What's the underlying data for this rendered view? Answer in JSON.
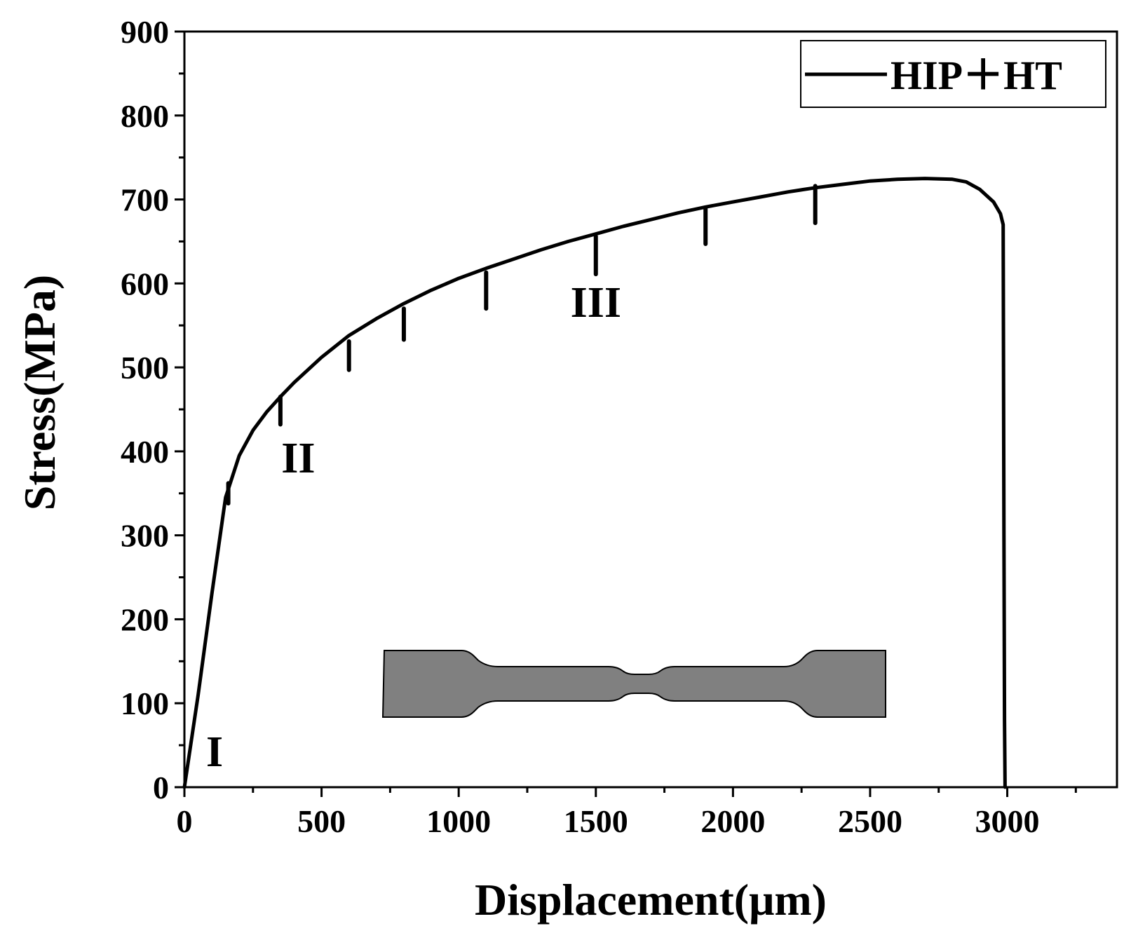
{
  "chart_data": {
    "type": "line",
    "xlabel": "Displacement(μm)",
    "ylabel": "Stress(MPa)",
    "xlim": [
      0,
      3400
    ],
    "ylim": [
      0,
      900
    ],
    "xticks": [
      0,
      500,
      1000,
      1500,
      2000,
      2500,
      3000
    ],
    "yticks": [
      0,
      100,
      200,
      300,
      400,
      500,
      600,
      700,
      800,
      900
    ],
    "xtick_labels": [
      "0",
      "500",
      "1000",
      "1500",
      "2000",
      "2500",
      "3000"
    ],
    "ytick_labels": [
      "0",
      "100",
      "200",
      "300",
      "400",
      "500",
      "600",
      "700",
      "800",
      "900"
    ],
    "grid": false,
    "legend_position": "top-right",
    "series": [
      {
        "name": "HIP＋HT",
        "color": "#000000",
        "x": [
          0,
          50,
          100,
          150,
          200,
          250,
          300,
          350,
          400,
          500,
          600,
          700,
          800,
          900,
          1000,
          1100,
          1200,
          1300,
          1400,
          1500,
          1600,
          1700,
          1800,
          1900,
          2000,
          2100,
          2200,
          2300,
          2400,
          2500,
          2600,
          2700,
          2800,
          2850,
          2900,
          2950,
          2975,
          2985,
          2988,
          2990,
          2992
        ],
        "y": [
          0,
          110,
          230,
          345,
          395,
          425,
          447,
          465,
          482,
          512,
          538,
          558,
          576,
          592,
          606,
          618,
          629,
          640,
          650,
          659,
          668,
          676,
          684,
          691,
          697,
          703,
          709,
          714,
          718,
          722,
          724,
          725,
          724,
          721,
          712,
          697,
          683,
          670,
          300,
          80,
          0
        ]
      }
    ],
    "unloading_drops": [
      {
        "x": 160,
        "y_top": 362,
        "y_bottom": 338
      },
      {
        "x": 350,
        "y_top": 465,
        "y_bottom": 432
      },
      {
        "x": 600,
        "y_top": 531,
        "y_bottom": 497
      },
      {
        "x": 800,
        "y_top": 570,
        "y_bottom": 533
      },
      {
        "x": 1100,
        "y_top": 613,
        "y_bottom": 570
      },
      {
        "x": 1500,
        "y_top": 656,
        "y_bottom": 611
      },
      {
        "x": 1900,
        "y_top": 690,
        "y_bottom": 647
      },
      {
        "x": 2300,
        "y_top": 716,
        "y_bottom": 672
      }
    ],
    "annotations": [
      {
        "text": "I",
        "x": 110,
        "y": 25
      },
      {
        "text": "II",
        "x": 415,
        "y": 375
      },
      {
        "text": "III",
        "x": 1500,
        "y": 560
      }
    ],
    "inset": "dog-bone tensile specimen"
  }
}
